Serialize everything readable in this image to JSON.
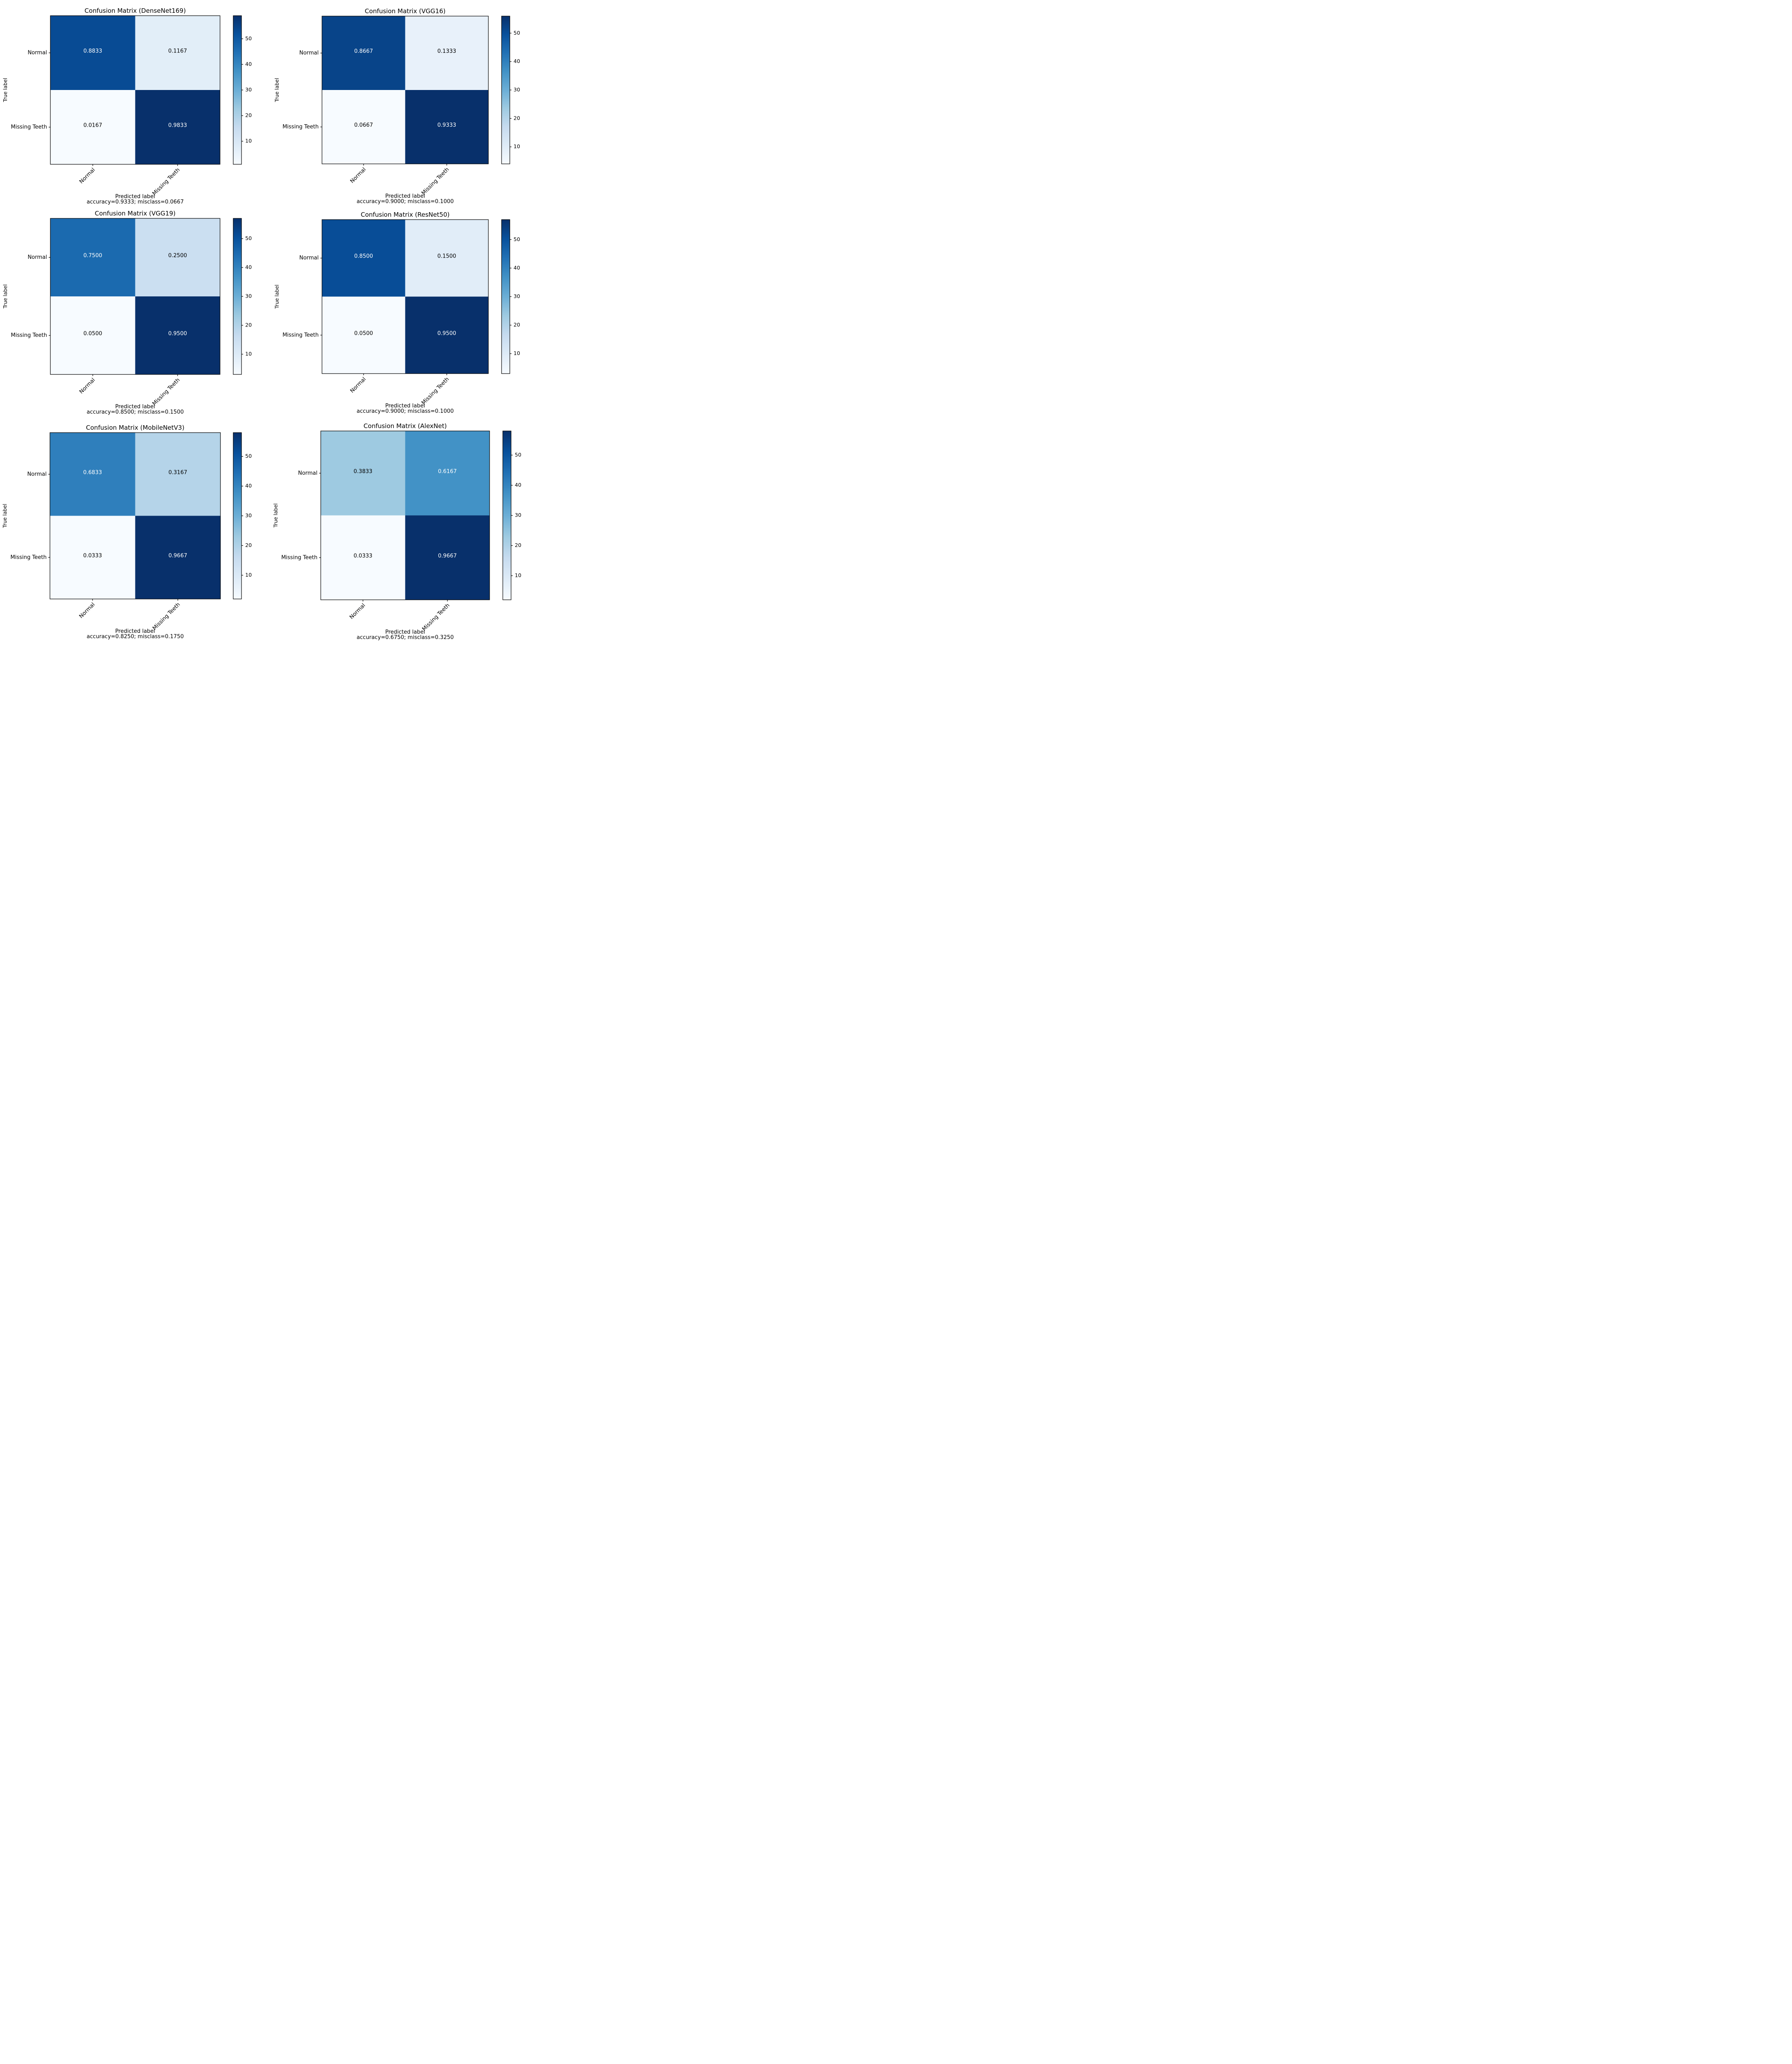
{
  "colorbar_ticks": [
    10,
    20,
    30,
    40,
    50
  ],
  "chart_data": [
    {
      "type": "heatmap",
      "title": "Confusion Matrix (DenseNet169)",
      "xlabel": "Predicted label",
      "ylabel": "True label",
      "footer": "accuracy=0.9333; misclass=0.0667",
      "categories": [
        "Normal",
        "Missing Teeth"
      ],
      "matrix": [
        [
          0.8833,
          0.1167
        ],
        [
          0.0167,
          0.9833
        ]
      ],
      "display": [
        [
          "0.8833",
          "0.1167"
        ],
        [
          "0.0167",
          "0.9833"
        ]
      ],
      "counts": [
        [
          53,
          7
        ],
        [
          1,
          59
        ]
      ],
      "colorbar_range": [
        1,
        59
      ],
      "colorbar_ticks": [
        "10",
        "20",
        "30",
        "40",
        "50"
      ]
    },
    {
      "type": "heatmap",
      "title": "Confusion Matrix (VGG16)",
      "xlabel": "Predicted label",
      "ylabel": "True label",
      "footer": "accuracy=0.9000; misclass=0.1000",
      "categories": [
        "Normal",
        "Missing Teeth"
      ],
      "matrix": [
        [
          0.8667,
          0.1333
        ],
        [
          0.0667,
          0.9333
        ]
      ],
      "display": [
        [
          "0.8667",
          "0.1333"
        ],
        [
          "0.0667",
          "0.9333"
        ]
      ],
      "counts": [
        [
          52,
          8
        ],
        [
          4,
          56
        ]
      ],
      "colorbar_range": [
        4,
        56
      ],
      "colorbar_ticks": [
        "10",
        "20",
        "30",
        "40",
        "50"
      ]
    },
    {
      "type": "heatmap",
      "title": "Confusion Matrix (VGG19)",
      "xlabel": "Predicted label",
      "ylabel": "True label",
      "footer": "accuracy=0.8500; misclass=0.1500",
      "categories": [
        "Normal",
        "Missing Teeth"
      ],
      "matrix": [
        [
          0.75,
          0.25
        ],
        [
          0.05,
          0.95
        ]
      ],
      "display": [
        [
          "0.7500",
          "0.2500"
        ],
        [
          "0.0500",
          "0.9500"
        ]
      ],
      "counts": [
        [
          45,
          15
        ],
        [
          3,
          57
        ]
      ],
      "colorbar_range": [
        3,
        57
      ],
      "colorbar_ticks": [
        "10",
        "20",
        "30",
        "40",
        "50"
      ]
    },
    {
      "type": "heatmap",
      "title": "Confusion Matrix (ResNet50)",
      "xlabel": "Predicted label",
      "ylabel": "True label",
      "footer": "accuracy=0.9000; misclass=0.1000",
      "categories": [
        "Normal",
        "Missing Teeth"
      ],
      "matrix": [
        [
          0.85,
          0.15
        ],
        [
          0.05,
          0.95
        ]
      ],
      "display": [
        [
          "0.8500",
          "0.1500"
        ],
        [
          "0.0500",
          "0.9500"
        ]
      ],
      "counts": [
        [
          51,
          9
        ],
        [
          3,
          57
        ]
      ],
      "colorbar_range": [
        3,
        57
      ],
      "colorbar_ticks": [
        "10",
        "20",
        "30",
        "40",
        "50"
      ]
    },
    {
      "type": "heatmap",
      "title": "Confusion Matrix (MobileNetV3)",
      "xlabel": "Predicted label",
      "ylabel": "True label",
      "footer": "accuracy=0.8250; misclass=0.1750",
      "categories": [
        "Normal",
        "Missing Teeth"
      ],
      "matrix": [
        [
          0.6833,
          0.3167
        ],
        [
          0.0333,
          0.9667
        ]
      ],
      "display": [
        [
          "0.6833",
          "0.3167"
        ],
        [
          "0.0333",
          "0.9667"
        ]
      ],
      "counts": [
        [
          41,
          19
        ],
        [
          2,
          58
        ]
      ],
      "colorbar_range": [
        2,
        58
      ],
      "colorbar_ticks": [
        "10",
        "20",
        "30",
        "40",
        "50"
      ]
    },
    {
      "type": "heatmap",
      "title": "Confusion Matrix (AlexNet)",
      "xlabel": "Predicted label",
      "ylabel": "True label",
      "footer": "accuracy=0.6750; misclass=0.3250",
      "categories": [
        "Normal",
        "Missing Teeth"
      ],
      "matrix": [
        [
          0.3833,
          0.6167
        ],
        [
          0.0333,
          0.9667
        ]
      ],
      "display": [
        [
          "0.3833",
          "0.6167"
        ],
        [
          "0.0333",
          "0.9667"
        ]
      ],
      "counts": [
        [
          23,
          37
        ],
        [
          2,
          58
        ]
      ],
      "colorbar_range": [
        2,
        58
      ],
      "colorbar_ticks": [
        "10",
        "20",
        "30",
        "40",
        "50"
      ]
    }
  ]
}
